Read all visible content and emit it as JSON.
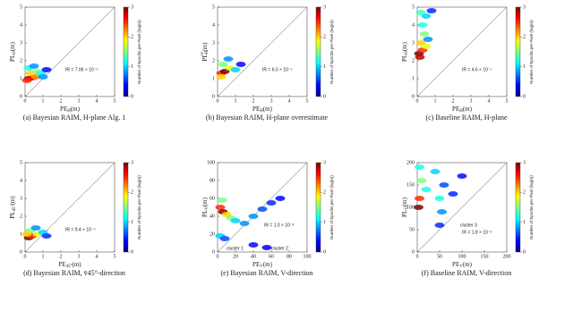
{
  "chart_data": [
    {
      "type": "scatter",
      "caption": "(a) Bayesian RAIM, H-plane Alg. 1",
      "xlabel": {
        "base": "PE",
        "sub": "H",
        "unit": "(m)"
      },
      "ylabel": {
        "base": "PL",
        "sub": "H",
        "unit": "(m)"
      },
      "xlim": [
        0,
        5
      ],
      "ylim": [
        0,
        5
      ],
      "xticks": [
        0,
        1,
        2,
        3,
        4,
        5
      ],
      "yticks": [
        0,
        1,
        2,
        3,
        4,
        5
      ],
      "annotation": "IR = 7.06 × 10⁻⁴",
      "colorbar_label": "Number of Epochs per Pixel (log(n))",
      "clim": [
        0,
        3
      ],
      "cticks": [
        0,
        1,
        2,
        3
      ],
      "x": [
        0.2,
        0.4,
        0.6,
        0.3,
        0.7,
        0.9,
        0.2,
        0.5,
        1.0,
        0.1,
        1.2
      ],
      "values": [
        1.0,
        1.05,
        1.1,
        1.3,
        1.4,
        1.3,
        1.6,
        1.7,
        1.1,
        0.9,
        1.5
      ],
      "density": [
        3,
        2.6,
        2.2,
        2,
        1.5,
        1.2,
        1.2,
        0.8,
        0.8,
        2.5,
        0.4
      ]
    },
    {
      "type": "scatter",
      "caption": "(b) Bayesian RAIM, H-plane overestimate",
      "xlabel": {
        "base": "PE",
        "sub": "H",
        "unit": "(m)"
      },
      "ylabel": {
        "base": "PL",
        "sub": "H",
        "sup": "ov",
        "unit": "(m)"
      },
      "xlim": [
        0,
        5
      ],
      "ylim": [
        0,
        5
      ],
      "xticks": [
        0,
        1,
        2,
        3,
        4,
        5
      ],
      "yticks": [
        0,
        1,
        2,
        3,
        4,
        5
      ],
      "annotation": "IR = 6.0 × 10⁻⁵",
      "colorbar_label": "Number of Epochs per Pixel (log(n))",
      "clim": [
        0,
        3
      ],
      "cticks": [
        0,
        1,
        2,
        3
      ],
      "x": [
        0.2,
        0.4,
        0.7,
        0.3,
        1.0,
        0.6,
        0.2,
        1.3
      ],
      "values": [
        1.3,
        1.4,
        1.6,
        1.8,
        1.5,
        2.1,
        1.1,
        1.8
      ],
      "density": [
        2.5,
        3,
        1.8,
        1.5,
        1,
        0.8,
        2,
        0.4
      ]
    },
    {
      "type": "scatter",
      "caption": "(c) Baseline RAIM, H-plane",
      "xlabel": {
        "base": "PE",
        "sub": "H",
        "unit": "(m)"
      },
      "ylabel": {
        "base": "PL",
        "sub": "H",
        "unit": "(m)"
      },
      "xlim": [
        0,
        5
      ],
      "ylim": [
        0,
        5
      ],
      "xticks": [
        0,
        1,
        2,
        3,
        4,
        5
      ],
      "yticks": [
        0,
        1,
        2,
        3,
        4,
        5
      ],
      "annotation": "IR = 4.6 × 10⁻¹",
      "colorbar_label": "Number of Epochs per Pixel (log(n))",
      "clim": [
        0,
        3
      ],
      "cticks": [
        0,
        1,
        2,
        3
      ],
      "x": [
        0.1,
        0.3,
        0.2,
        0.4,
        0.3,
        0.5,
        0.6,
        0.8,
        0.15,
        0.5,
        0.2
      ],
      "values": [
        2.4,
        2.6,
        3,
        3.5,
        4,
        4.5,
        3.2,
        4.8,
        2.2,
        2.8,
        4.7
      ],
      "density": [
        3,
        2.5,
        2,
        1.5,
        1.2,
        1,
        0.8,
        0.5,
        2.8,
        1.8,
        1.3
      ]
    },
    {
      "type": "scatter",
      "caption": "(d) Bayesian RAIM, v̄45°-direction",
      "xlabel": {
        "base": "PE",
        "sub": "45°",
        "unit": "(m)"
      },
      "ylabel": {
        "base": "PL",
        "sub": "45°",
        "unit": "(m)"
      },
      "xlim": [
        0,
        5
      ],
      "ylim": [
        0,
        5
      ],
      "xticks": [
        0,
        1,
        2,
        3,
        4,
        5
      ],
      "yticks": [
        0,
        1,
        2,
        3,
        4,
        5
      ],
      "annotation": "IR = 9.4 × 10⁻⁴",
      "colorbar_label": "Number of Epochs per Pixel (log(n))",
      "clim": [
        0,
        3
      ],
      "cticks": [
        0,
        1,
        2,
        3
      ],
      "x": [
        0.2,
        0.4,
        0.7,
        0.3,
        1.0,
        0.6,
        1.2,
        0.1
      ],
      "values": [
        0.8,
        0.9,
        1.0,
        1.2,
        1.1,
        1.35,
        0.9,
        1.0
      ],
      "density": [
        3,
        2.5,
        1.8,
        1.5,
        1,
        0.8,
        0.5,
        2
      ]
    },
    {
      "type": "scatter",
      "caption": "(e) Bayesian RAIM, V-direction",
      "xlabel": {
        "base": "PE",
        "sub": "V",
        "unit": "(m)"
      },
      "ylabel": {
        "base": "PL",
        "sub": "V",
        "unit": "(m)"
      },
      "xlim": [
        0,
        100
      ],
      "ylim": [
        0,
        100
      ],
      "xticks": [
        0,
        20,
        40,
        60,
        80,
        100
      ],
      "yticks": [
        0,
        20,
        40,
        60,
        80,
        100
      ],
      "annotation": "IR = 1.0 × 10⁻³",
      "colorbar_label": "Number of Epochs per Pixel (log(n))",
      "clim": [
        0,
        3
      ],
      "cticks": [
        0,
        1,
        2,
        3
      ],
      "labels": [
        "cluster 1",
        "cluster 2"
      ],
      "x": [
        3,
        6,
        10,
        15,
        20,
        30,
        40,
        50,
        60,
        70,
        5,
        3,
        8,
        40,
        55
      ],
      "values": [
        50,
        45,
        42,
        38,
        35,
        32,
        40,
        48,
        55,
        60,
        58,
        18,
        15,
        8,
        5
      ],
      "density": [
        2.5,
        3,
        2,
        1.5,
        1,
        0.8,
        0.8,
        0.6,
        0.5,
        0.4,
        1.5,
        1,
        0.6,
        0.4,
        0.3
      ]
    },
    {
      "type": "scatter",
      "caption": "(f) Baseline RAIM, V-direction",
      "xlabel": {
        "base": "PE",
        "sub": "V",
        "unit": "(m)"
      },
      "ylabel": {
        "base": "PL",
        "sub": "V",
        "unit": "(m)"
      },
      "xlim": [
        0,
        200
      ],
      "ylim": [
        0,
        200
      ],
      "xticks": [
        0,
        50,
        100,
        150,
        200
      ],
      "yticks": [
        0,
        50,
        100,
        150,
        200
      ],
      "annotation": "IR = 1.8 × 10⁻³",
      "colorbar_label": "Number of Epochs per Pixel (log(n))",
      "clim": [
        0,
        3
      ],
      "cticks": [
        0,
        1,
        2,
        3
      ],
      "labels": [
        "cluster 3"
      ],
      "x": [
        3,
        5,
        10,
        20,
        40,
        50,
        55,
        60,
        80,
        100,
        5,
        50
      ],
      "values": [
        100,
        120,
        160,
        140,
        180,
        120,
        90,
        150,
        130,
        170,
        190,
        60
      ],
      "density": [
        3,
        2.5,
        1.5,
        1.2,
        1,
        1.2,
        0.8,
        0.6,
        0.5,
        0.4,
        1.2,
        0.5
      ]
    }
  ]
}
